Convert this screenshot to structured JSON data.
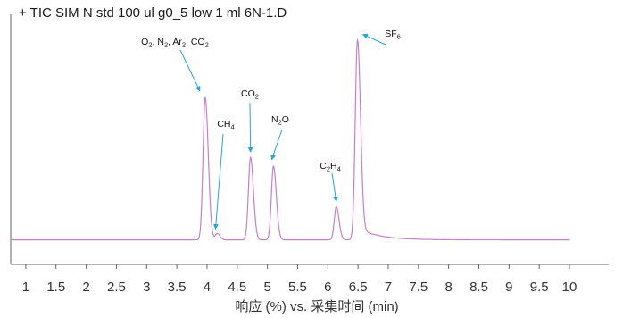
{
  "chart_data": {
    "type": "line",
    "title": "+ TIC SIM N std 100 ul g0_5 low 1 ml 6N-1.D",
    "xlabel": "响应 (%) vs. 采集时间 (min)",
    "ylabel": "",
    "xlim": [
      0.75,
      10.65
    ],
    "ylim": [
      0,
      100
    ],
    "x_ticks": [
      "1",
      "1.5",
      "2",
      "2.5",
      "3",
      "3.5",
      "4",
      "4.5",
      "5",
      "5.5",
      "6",
      "6.5",
      "7",
      "7.5",
      "8",
      "8.5",
      "9",
      "9.5",
      "10"
    ],
    "grid": false,
    "colors": {
      "trace": "#c77fc7",
      "arrow": "#2aa3d9",
      "axis": "#666666",
      "text": "#1a1a1a"
    },
    "series": [
      {
        "baseline": 1,
        "x_range": [
          0.75,
          10.0
        ],
        "peaks": [
          {
            "rt": 3.97,
            "height": 66.5
          },
          {
            "rt": 4.17,
            "height": 3
          },
          {
            "rt": 4.72,
            "height": 38.5
          },
          {
            "rt": 5.1,
            "height": 34.5
          },
          {
            "rt": 6.14,
            "height": 15.5
          },
          {
            "rt": 6.49,
            "height": 93
          }
        ]
      }
    ],
    "annotations": [
      {
        "parts": [
          [
            "O",
            "2",
            ", N",
            "2",
            ", Ar",
            "2",
            ", CO",
            "2"
          ]
        ],
        "x": 3.97,
        "y": 66.5
      },
      {
        "parts": [
          [
            "CH",
            "4"
          ]
        ],
        "x": 4.17,
        "y": 3
      },
      {
        "parts": [
          [
            "CO",
            "2"
          ]
        ],
        "x": 4.72,
        "y": 38.5
      },
      {
        "parts": [
          [
            "N",
            "2",
            "O"
          ]
        ],
        "x": 5.1,
        "y": 34.5
      },
      {
        "parts": [
          [
            "C",
            "2",
            "H",
            "4"
          ]
        ],
        "x": 6.14,
        "y": 15.5
      },
      {
        "parts": [
          [
            "SF",
            "6"
          ]
        ],
        "x": 6.49,
        "y": 93
      }
    ]
  }
}
